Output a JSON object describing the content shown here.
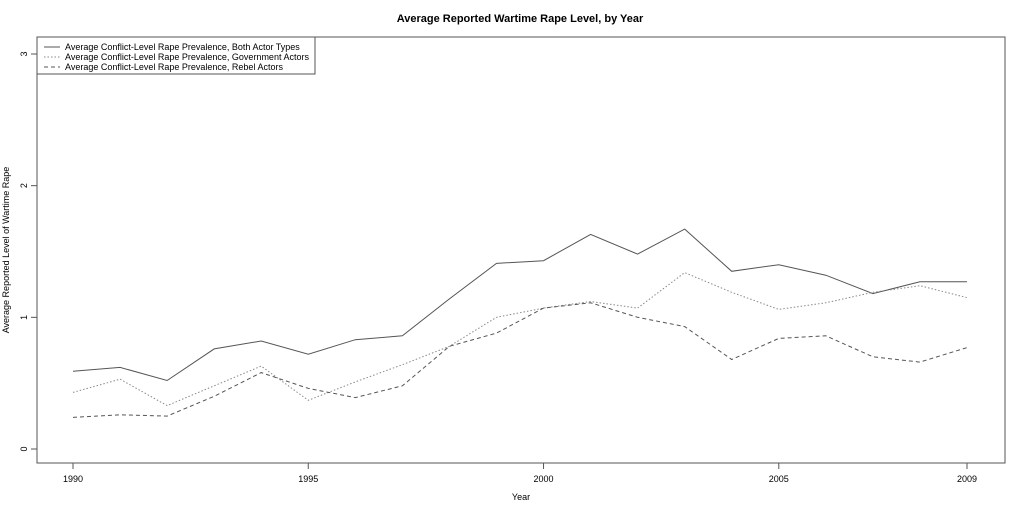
{
  "chart_data": {
    "type": "line",
    "title": "Average Reported Wartime Rape Level, by Year",
    "xlabel": "Year",
    "ylabel": "Average Reported Level of Wartime Rape",
    "xlim": [
      1990,
      2009
    ],
    "ylim": [
      0,
      3
    ],
    "xticks": [
      "1990",
      "1995",
      "2000",
      "2005",
      "2009"
    ],
    "xtick_values": [
      1990,
      1995,
      2000,
      2005,
      2009
    ],
    "yticks": [
      "0",
      "1",
      "2",
      "3"
    ],
    "ytick_values": [
      0,
      1,
      2,
      3
    ],
    "grid": false,
    "legend_position": "top-left",
    "x": [
      1990,
      1991,
      1992,
      1993,
      1994,
      1995,
      1996,
      1997,
      1998,
      1999,
      2000,
      2001,
      2002,
      2003,
      2004,
      2005,
      2006,
      2007,
      2008,
      2009
    ],
    "series": [
      {
        "name": "Average Conflict-Level Rape Prevalence, Both Actor Types",
        "style": "solid",
        "color": "#555555",
        "values": [
          0.59,
          0.62,
          0.52,
          0.76,
          0.82,
          0.72,
          0.83,
          0.86,
          1.14,
          1.41,
          1.43,
          1.63,
          1.48,
          1.67,
          1.35,
          1.4,
          1.32,
          1.18,
          1.27,
          1.27
        ]
      },
      {
        "name": "Average Conflict-Level Rape Prevalence, Government Actors",
        "style": "dotted",
        "color": "#888888",
        "values": [
          0.43,
          0.53,
          0.33,
          0.48,
          0.63,
          0.37,
          0.51,
          0.64,
          0.78,
          1.0,
          1.07,
          1.12,
          1.07,
          1.34,
          1.19,
          1.06,
          1.11,
          1.19,
          1.24,
          1.15
        ]
      },
      {
        "name": "Average Conflict-Level Rape Prevalence, Rebel Actors",
        "style": "dashed",
        "color": "#555555",
        "values": [
          0.24,
          0.26,
          0.25,
          0.4,
          0.58,
          0.46,
          0.39,
          0.48,
          0.78,
          0.88,
          1.07,
          1.11,
          1.0,
          0.93,
          0.68,
          0.84,
          0.86,
          0.7,
          0.66,
          0.77
        ]
      }
    ]
  }
}
